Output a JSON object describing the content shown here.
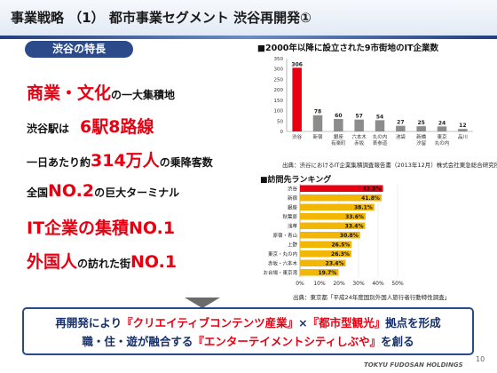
{
  "slide": {
    "title": "事業戦略 （1） 都市事業セグメント 渋谷再開発①",
    "page": "10",
    "logo": "TOKYU FUDOSAN HOLDINGS"
  },
  "features": {
    "header": "渋谷の特長",
    "item1": {
      "highlight": "商業・文化",
      "rest": "の一大集積地"
    },
    "item2": {
      "prefix": "渋谷駅は",
      "highlight": "6駅8路線"
    },
    "item3": {
      "prefix": "一日あたり約",
      "highlight": "314万人",
      "rest": "の乗降客数"
    },
    "item4": {
      "prefix": "全国",
      "highlight": "NO.2",
      "rest": "の巨大ターミナル"
    },
    "item5": {
      "highlight": "IT企業の集積NO.1"
    },
    "item6": {
      "highlight": "外国人",
      "mid": "の訪れた街",
      "highlight2": "NO.1"
    }
  },
  "banner": {
    "l1_a": "再開発により",
    "l1_b": "『クリエイティブコンテンツ産業』",
    "l1_c": "×",
    "l1_d": "『都市型観光』",
    "l1_e": "拠点を形成",
    "l2_a": "職・住・遊が融合する",
    "l2_b": "『エンターテイメントシティしぶや』",
    "l2_c": "を創る"
  },
  "chart_data": [
    {
      "type": "bar",
      "title": "■2000年以降に設立された9市街地のIT企業数",
      "categories": [
        "渋谷",
        "新宿",
        "銀座\n有楽町",
        "六本木\n赤坂",
        "丸の内\n表参道",
        "池袋",
        "新橋\n汐留",
        "東京\n丸の内",
        "品川"
      ],
      "values": [
        306,
        78,
        60,
        57,
        54,
        27,
        25,
        24,
        12
      ],
      "ylim": [
        0,
        350
      ],
      "yticks": [
        0,
        50,
        100,
        150,
        200,
        250,
        300,
        350
      ],
      "highlight_color": "#e60012",
      "bar_color": "#8c8c8c",
      "source": "出典：渋谷におけるIT企業集積調査報告書（2013年12月）株式会社東急総合研究所"
    },
    {
      "type": "bar",
      "orientation": "horizontal",
      "title": "■訪問先ランキング",
      "categories": [
        "渋谷",
        "新宿",
        "銀座",
        "秋葉原",
        "浅草",
        "原宿・青山",
        "上野",
        "東京・丸の内",
        "赤坂・六本木",
        "お台場・東京湾"
      ],
      "values": [
        42.5,
        41.8,
        38.1,
        33.6,
        33.4,
        30.8,
        26.5,
        26.3,
        23.4,
        19.7
      ],
      "labels": [
        "42.5%",
        "41.8%",
        "38.1%",
        "33.6%",
        "33.4%",
        "30.8%",
        "26.5%",
        "26.3%",
        "23.4%",
        "19.7%"
      ],
      "xlim": [
        0,
        50
      ],
      "xticks": [
        "0%",
        "10%",
        "20%",
        "30%",
        "40%",
        "50%"
      ],
      "highlight_color": "#e60012",
      "bar_color": "#f2b705",
      "source": "出典：東京都「平成24年度国別外国人旅行者行動特性調査」"
    }
  ]
}
